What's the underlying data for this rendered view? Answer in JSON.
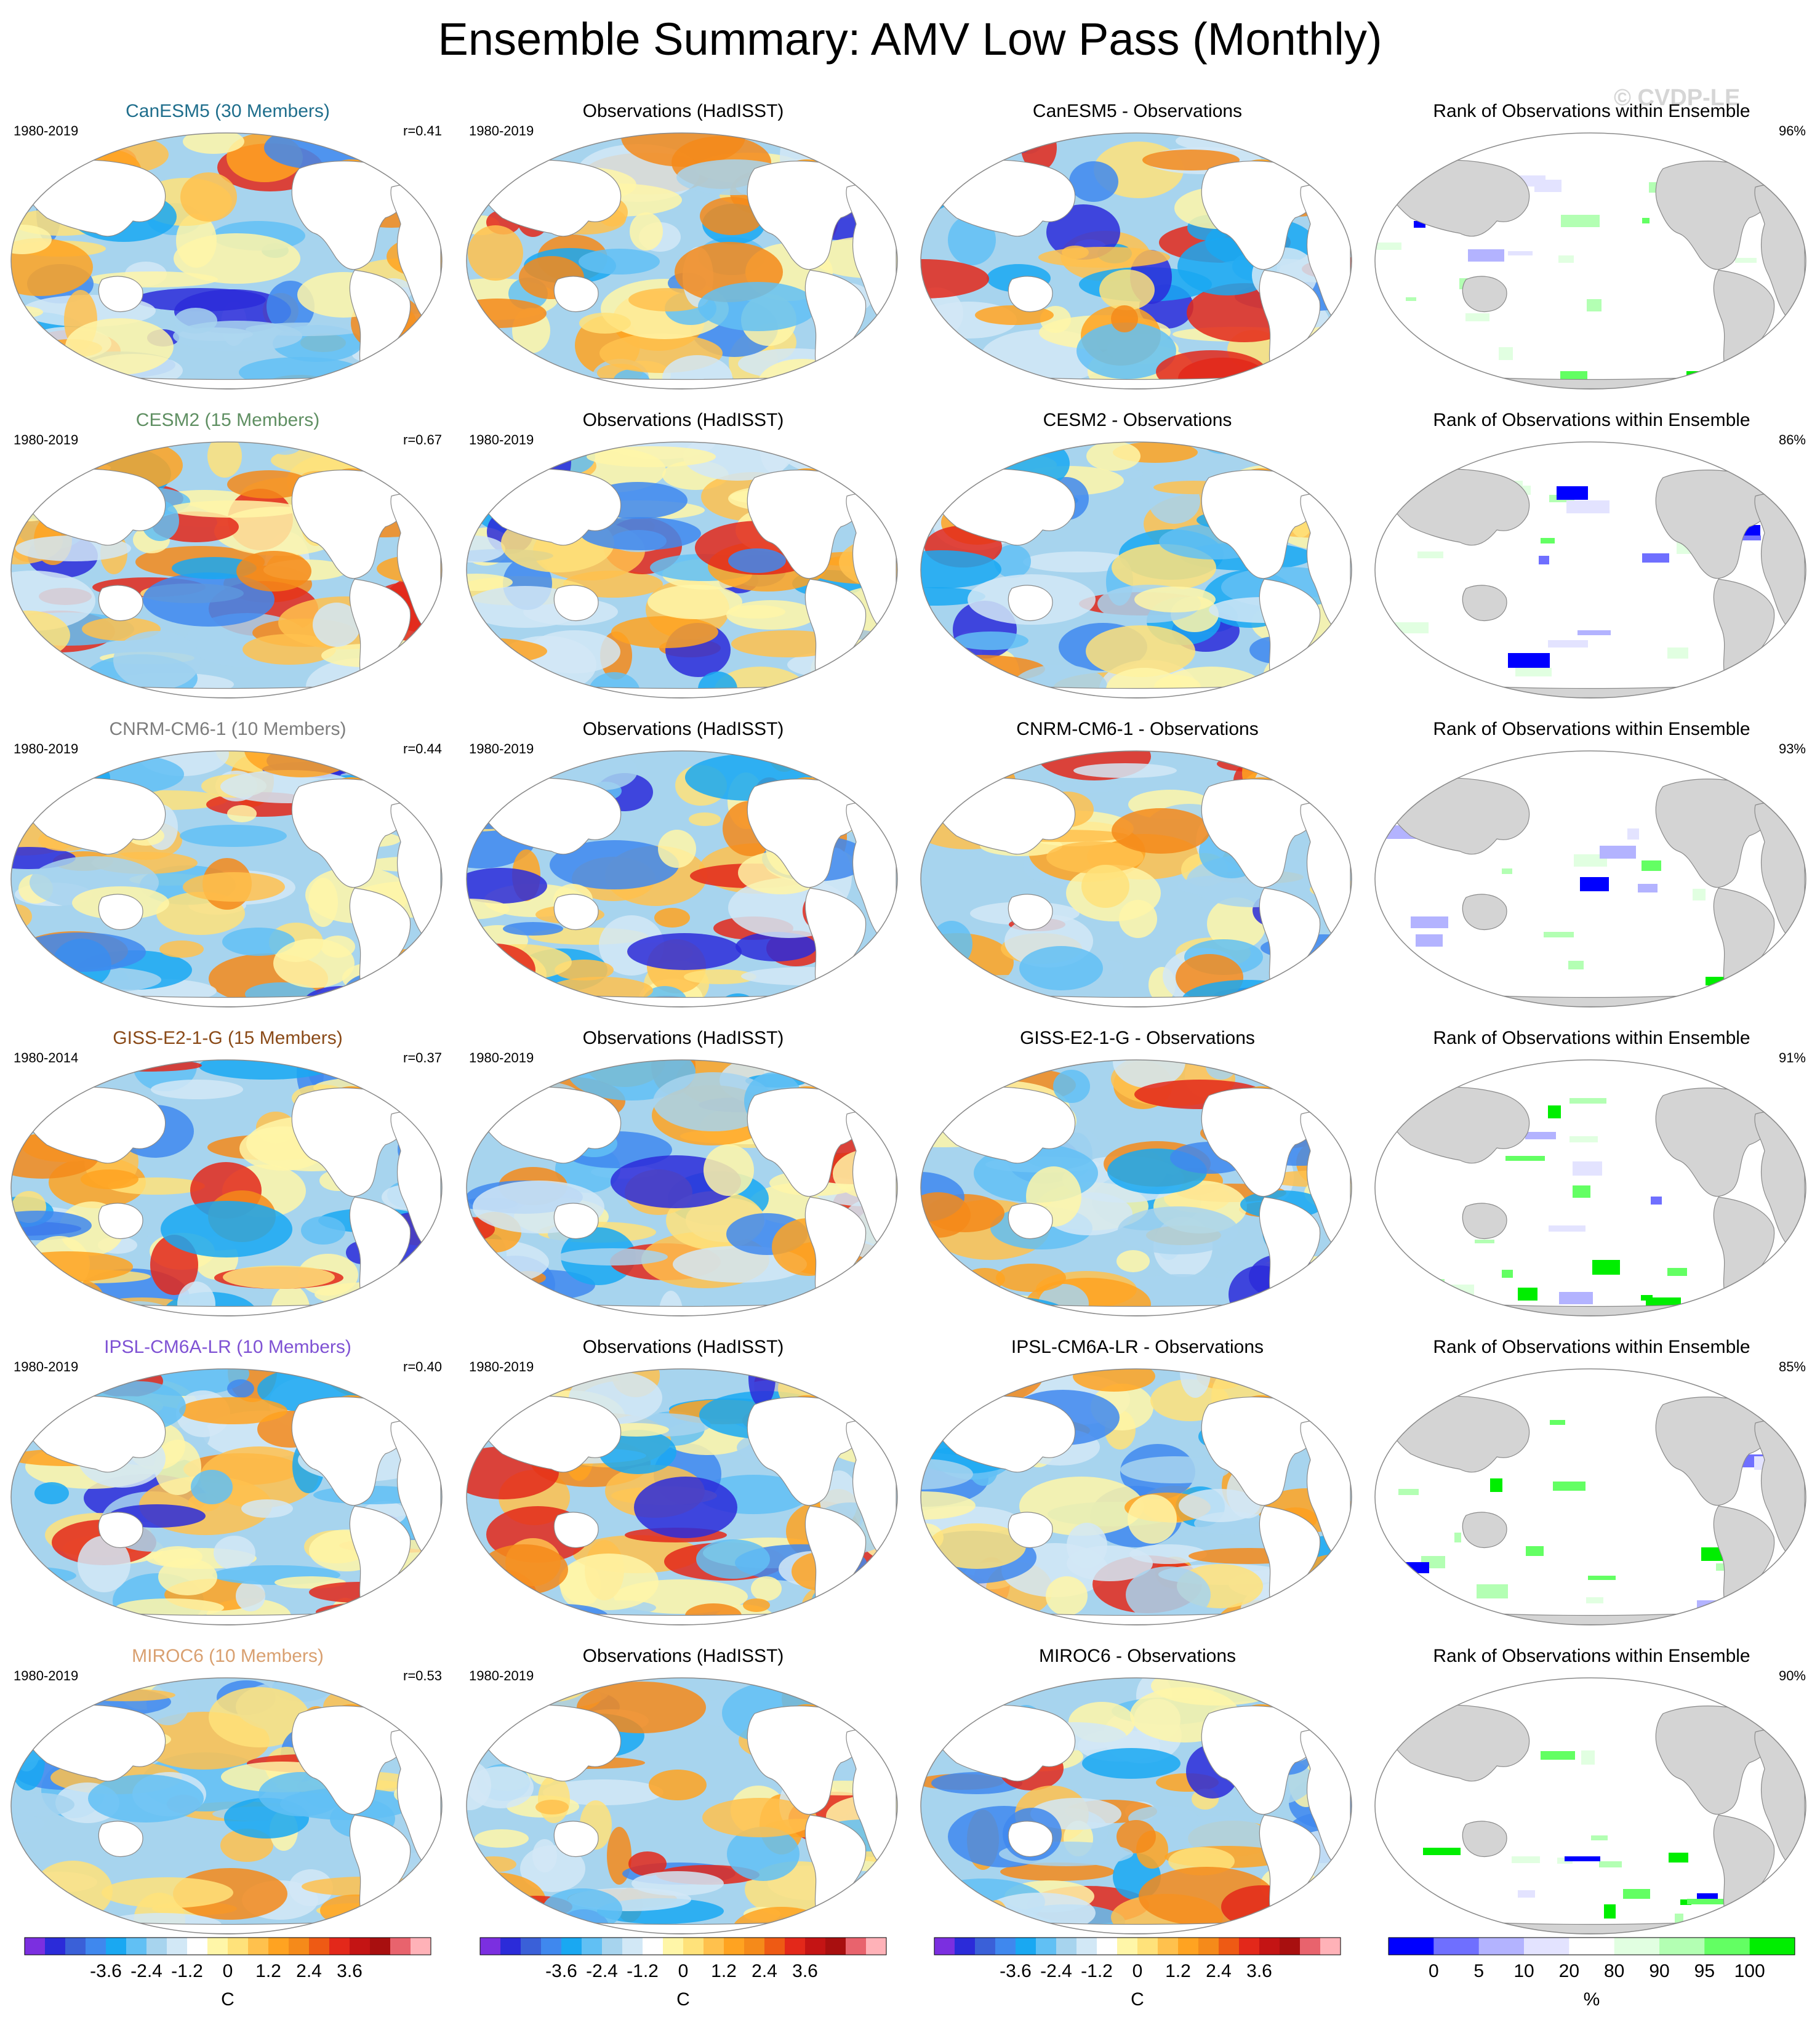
{
  "page": {
    "title": "Ensemble Summary: AMV Low Pass (Monthly)",
    "watermark": "© CVDP-LE"
  },
  "colors": {
    "title_canesm5": "#1f6e8c",
    "title_cesm2": "#5f8f62",
    "title_cnrm": "#7d7d7d",
    "title_giss": "#8a4a18",
    "title_ipsl": "#7f52d4",
    "title_miroc": "#d9a070",
    "land_white": "#ffffff",
    "land_gray": "#d4d4d4",
    "coast": "#8a8a8a"
  },
  "rows": [
    {
      "model": {
        "title": "CanESM5 (30 Members)",
        "years": "1980-2019",
        "corr": "r=0.41",
        "color_key": "title_canesm5"
      },
      "obs": {
        "title": "Observations (HadISST)",
        "years": "1980-2019"
      },
      "diff": {
        "title": "CanESM5 - Observations"
      },
      "rank": {
        "title": "Rank of Observations within Ensemble",
        "pct": "96%"
      }
    },
    {
      "model": {
        "title": "CESM2 (15 Members)",
        "years": "1980-2019",
        "corr": "r=0.67",
        "color_key": "title_cesm2"
      },
      "obs": {
        "title": "Observations (HadISST)",
        "years": "1980-2019"
      },
      "diff": {
        "title": "CESM2 - Observations"
      },
      "rank": {
        "title": "Rank of Observations within Ensemble",
        "pct": "86%"
      }
    },
    {
      "model": {
        "title": "CNRM-CM6-1 (10 Members)",
        "years": "1980-2019",
        "corr": "r=0.44",
        "color_key": "title_cnrm"
      },
      "obs": {
        "title": "Observations (HadISST)",
        "years": "1980-2019"
      },
      "diff": {
        "title": "CNRM-CM6-1 - Observations"
      },
      "rank": {
        "title": "Rank of Observations within Ensemble",
        "pct": "93%"
      }
    },
    {
      "model": {
        "title": "GISS-E2-1-G (15 Members)",
        "years": "1980-2014",
        "corr": "r=0.37",
        "color_key": "title_giss"
      },
      "obs": {
        "title": "Observations (HadISST)",
        "years": "1980-2019"
      },
      "diff": {
        "title": "GISS-E2-1-G - Observations"
      },
      "rank": {
        "title": "Rank of Observations within Ensemble",
        "pct": "91%"
      }
    },
    {
      "model": {
        "title": "IPSL-CM6A-LR (10 Members)",
        "years": "1980-2019",
        "corr": "r=0.40",
        "color_key": "title_ipsl"
      },
      "obs": {
        "title": "Observations (HadISST)",
        "years": "1980-2019"
      },
      "diff": {
        "title": "IPSL-CM6A-LR - Observations"
      },
      "rank": {
        "title": "Rank of Observations within Ensemble",
        "pct": "85%"
      }
    },
    {
      "model": {
        "title": "MIROC6 (10 Members)",
        "years": "1980-2019",
        "corr": "r=0.53",
        "color_key": "title_miroc"
      },
      "obs": {
        "title": "Observations (HadISST)",
        "years": "1980-2019"
      },
      "diff": {
        "title": "MIROC6 - Observations"
      },
      "rank": {
        "title": "Rank of Observations within Ensemble",
        "pct": "90%"
      }
    }
  ],
  "colorbars": {
    "temp": {
      "colors": [
        "#7b2fe0",
        "#2b2bd9",
        "#3a60d8",
        "#3f88ee",
        "#19a8f2",
        "#61c0f4",
        "#a7d4ee",
        "#d2e8f6",
        "#ffffff",
        "#fff6a8",
        "#ffe27a",
        "#ffc14d",
        "#ffa321",
        "#f58a1a",
        "#ee5a14",
        "#e3281a",
        "#c41414",
        "#a80f0f",
        "#e8636d",
        "#ffb2b8"
      ],
      "tick_labels": [
        "-3.6",
        "-2.4",
        "-1.2",
        "0",
        "1.2",
        "2.4",
        "3.6"
      ],
      "unit": "C"
    },
    "rank": {
      "colors": [
        "#0000ff",
        "#6f6fff",
        "#b3b3ff",
        "#e3e3ff",
        "#ffffff",
        "#e1ffe1",
        "#b3ffb3",
        "#63ff63",
        "#00ee00"
      ],
      "tick_labels": [
        "0",
        "5",
        "10",
        "20",
        "80",
        "90",
        "95",
        "100"
      ],
      "unit": "%"
    }
  }
}
